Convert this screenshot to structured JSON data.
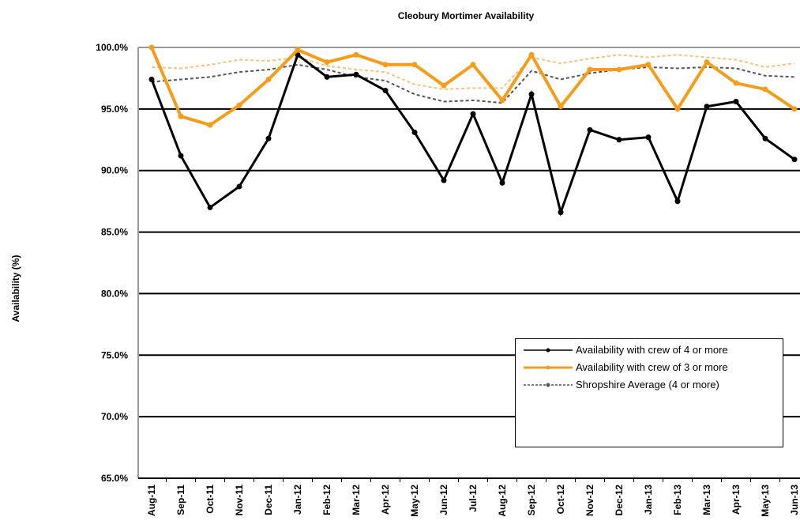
{
  "chart_data": {
    "type": "line",
    "title": "Cleobury Mortimer Availability",
    "y_label": "Availability (%)",
    "categories": [
      "Aug-11",
      "Sep-11",
      "Oct-11",
      "Nov-11",
      "Dec-11",
      "Jan-12",
      "Feb-12",
      "Mar-12",
      "Apr-12",
      "May-12",
      "Jun-12",
      "Jul-12",
      "Aug-12",
      "Sep-12",
      "Oct-12",
      "Nov-12",
      "Dec-12",
      "Jan-13",
      "Feb-13",
      "Mar-13",
      "Apr-13",
      "May-13",
      "Jun-13"
    ],
    "series": [
      {
        "color": "#f7c27a",
        "dashed": true,
        "values": [
          98.4,
          98.3,
          98.6,
          99.0,
          98.9,
          99.2,
          98.5,
          98.2,
          98.0,
          97.0,
          96.6,
          96.7,
          96.7,
          99.2,
          98.7,
          99.1,
          99.4,
          99.2,
          99.4,
          99.2,
          99.0,
          98.4,
          98.7
        ]
      },
      {
        "name": "Shropshire Average (4 or more)",
        "color": "#555555",
        "dashed": true,
        "values": [
          97.2,
          97.4,
          97.6,
          98.0,
          98.2,
          98.6,
          98.2,
          97.6,
          97.3,
          96.2,
          95.6,
          95.7,
          95.5,
          98.1,
          97.4,
          97.9,
          98.2,
          98.4,
          98.3,
          98.4,
          98.3,
          97.7,
          97.6
        ]
      },
      {
        "name": "Availability with crew of 4 or more",
        "color": "#000000",
        "values": [
          97.4,
          91.2,
          87.0,
          88.7,
          92.6,
          99.4,
          97.6,
          97.8,
          96.5,
          93.1,
          89.2,
          94.6,
          89.0,
          96.2,
          86.6,
          93.3,
          92.5,
          92.7,
          87.5,
          95.2,
          95.6,
          92.6,
          90.9
        ]
      },
      {
        "name": "Availability with crew of 3 or more",
        "color": "#f59d1b",
        "values": [
          100.0,
          94.4,
          93.7,
          95.3,
          97.4,
          99.8,
          98.8,
          99.4,
          98.6,
          98.6,
          96.9,
          98.6,
          95.7,
          99.4,
          95.2,
          98.2,
          98.2,
          98.6,
          95.0,
          98.8,
          97.1,
          96.6,
          95.0
        ]
      }
    ],
    "legend_order": [
      2,
      3,
      1
    ],
    "ylim": [
      65,
      100
    ],
    "yticks": [
      {
        "value": 65,
        "label": "65.0%"
      },
      {
        "value": 70,
        "label": "70.0%"
      },
      {
        "value": 75,
        "label": "75.0%"
      },
      {
        "value": 80,
        "label": "80.0%"
      },
      {
        "value": 85,
        "label": "85.0%"
      },
      {
        "value": 90,
        "label": "90.0%"
      },
      {
        "value": 95,
        "label": "95.0%"
      },
      {
        "value": 100,
        "label": "100.0%"
      }
    ],
    "grid": true
  }
}
